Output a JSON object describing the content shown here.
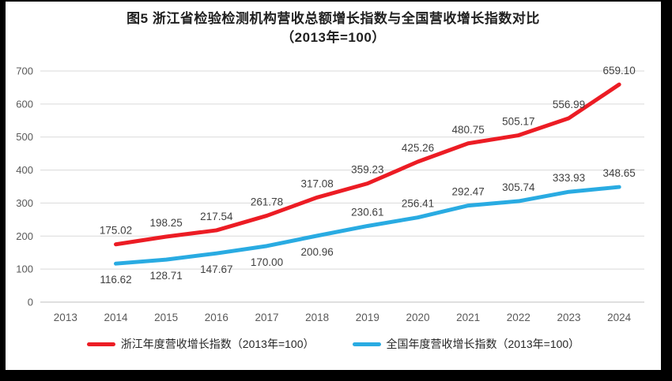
{
  "title": {
    "line1": "图5  浙江省检验检测机构营收总额增长指数与全国营收增长指数对比",
    "line2": "（2013年=100）"
  },
  "chart_data": {
    "type": "line",
    "categories": [
      "2013",
      "2014",
      "2015",
      "2016",
      "2017",
      "2018",
      "2019",
      "2020",
      "2021",
      "2022",
      "2023",
      "2024"
    ],
    "series": [
      {
        "name": "浙江年度营收增长指数（2013年=100）",
        "color": "#EC1C24",
        "start_index": 1,
        "values": [
          175.02,
          198.25,
          217.54,
          261.78,
          317.08,
          359.23,
          425.26,
          480.75,
          505.17,
          556.99,
          659.1
        ],
        "label_positions": [
          "above",
          "above",
          "above",
          "above",
          "above",
          "above",
          "above",
          "above",
          "above",
          "above",
          "above"
        ]
      },
      {
        "name": "全国年度营收增长指数（2013年=100）",
        "color": "#29ABE2",
        "start_index": 1,
        "values": [
          116.62,
          128.71,
          147.67,
          170.0,
          200.96,
          230.61,
          256.41,
          292.47,
          305.74,
          333.93,
          348.65
        ],
        "label_positions": [
          "below",
          "below",
          "below",
          "below",
          "below",
          "above",
          "above",
          "above",
          "above",
          "above",
          "above"
        ]
      }
    ],
    "title": "图5 浙江省检验检测机构营收总额增长指数与全国营收增长指数对比（2013年=100）",
    "xlabel": "",
    "ylabel": "",
    "ylim": [
      0,
      700
    ],
    "ytick_step": 100,
    "grid": true,
    "legend_position": "bottom"
  },
  "legend": {
    "items": [
      {
        "label": "浙江年度营收增长指数（2013年=100）",
        "color": "#EC1C24"
      },
      {
        "label": "全国年度营收增长指数（2013年=100）",
        "color": "#29ABE2"
      }
    ]
  },
  "styles": {
    "gridline_color": "#D9D9D9",
    "axis_line_color": "#BFBFBF",
    "tick_label_color": "#595959",
    "data_label_color": "#404040",
    "title_color": "#1f1f1f",
    "frame_color": "#000000",
    "background_color": "#ffffff"
  }
}
